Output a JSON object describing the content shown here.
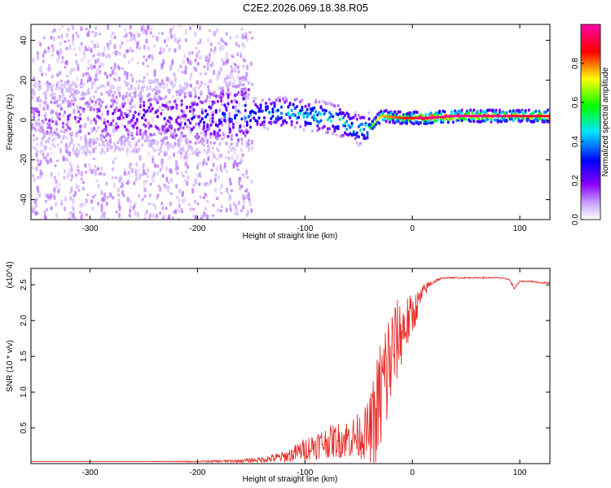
{
  "title": "C2E2.2026.069.18.38.R05",
  "chart_data": [
    {
      "type": "heatmap",
      "title": "C2E2.2026.069.18.38.R05",
      "xlabel": "Height of straight line (km)",
      "ylabel": "Frequency (Hz)",
      "xlim": [
        -355,
        128
      ],
      "ylim": [
        -50,
        48
      ],
      "xticks": [
        -300,
        -200,
        -100,
        0,
        100
      ],
      "xtick_labels": [
        "-300",
        "-200",
        "-100",
        "0",
        "100"
      ],
      "yticks": [
        -40,
        -20,
        0,
        20,
        40
      ],
      "ytick_labels": [
        "-40",
        "-20",
        "0",
        "20",
        "40"
      ],
      "colorbar": {
        "label": "Normalized spectral amplitude",
        "range": [
          0,
          1
        ],
        "ticks": [
          0,
          0.2,
          0.4,
          0.6,
          0.8
        ],
        "tick_labels": [
          "0.0",
          "0.2",
          "0.4",
          "0.6",
          "0.8"
        ],
        "colors": [
          "#ffffff",
          "#8b00ff",
          "#0000ff",
          "#00e5ff",
          "#00ff00",
          "#ffff00",
          "#ff0000",
          "#ff00aa"
        ]
      },
      "ridge": {
        "x": [
          -355,
          -300,
          -250,
          -200,
          -150,
          -120,
          -90,
          -70,
          -50,
          -40,
          -30,
          -10,
          10,
          40,
          80,
          100,
          128
        ],
        "freq": [
          2,
          1,
          2,
          1,
          3,
          4,
          2,
          0,
          -5,
          -4,
          2,
          1,
          1,
          2,
          2,
          2,
          2
        ],
        "amplitude": [
          0.15,
          0.2,
          0.25,
          0.3,
          0.45,
          0.5,
          0.55,
          0.55,
          0.5,
          0.6,
          0.75,
          0.85,
          0.95,
          0.98,
          0.95,
          0.9,
          0.9
        ]
      }
    },
    {
      "type": "line",
      "xlabel": "Height of straight line (km)",
      "ylabel": "SNR (10 * v/v)",
      "y_multiplier": "(x10^4)",
      "xlim": [
        -355,
        128
      ],
      "ylim": [
        0,
        2.73
      ],
      "xticks": [
        -300,
        -200,
        -100,
        0,
        100
      ],
      "xtick_labels": [
        "-300",
        "-200",
        "-100",
        "0",
        "100"
      ],
      "yticks": [
        0.5,
        1.0,
        1.5,
        2.0,
        2.5
      ],
      "ytick_labels": [
        "0.5",
        "1.0",
        "1.5",
        "2.0",
        "2.5"
      ],
      "series": [
        {
          "name": "SNR",
          "color": "#e8302c",
          "x": [
            -355,
            -300,
            -250,
            -200,
            -160,
            -140,
            -120,
            -110,
            -100,
            -90,
            -80,
            -70,
            -60,
            -50,
            -45,
            -40,
            -35,
            -30,
            -25,
            -20,
            -15,
            -10,
            -5,
            0,
            5,
            10,
            15,
            20,
            25,
            30,
            40,
            50,
            60,
            70,
            80,
            90,
            95,
            100,
            110,
            120,
            128
          ],
          "y": [
            0.03,
            0.03,
            0.03,
            0.03,
            0.04,
            0.06,
            0.1,
            0.15,
            0.22,
            0.28,
            0.32,
            0.35,
            0.38,
            0.42,
            0.45,
            0.5,
            0.7,
            1.0,
            1.3,
            1.55,
            1.75,
            1.9,
            2.0,
            2.1,
            2.25,
            2.4,
            2.5,
            2.55,
            2.58,
            2.6,
            2.6,
            2.6,
            2.6,
            2.6,
            2.6,
            2.58,
            2.45,
            2.55,
            2.55,
            2.53,
            2.53
          ],
          "noise": [
            0.0,
            0.0,
            0.0,
            0.01,
            0.02,
            0.04,
            0.08,
            0.12,
            0.16,
            0.2,
            0.22,
            0.25,
            0.28,
            0.32,
            0.36,
            0.45,
            0.7,
            0.9,
            0.95,
            0.8,
            0.6,
            0.5,
            0.4,
            0.3,
            0.2,
            0.12,
            0.06,
            0.03,
            0.02,
            0.01,
            0.01,
            0.01,
            0.01,
            0.01,
            0.01,
            0.01,
            0.02,
            0.01,
            0.01,
            0.01,
            0.01
          ]
        }
      ]
    }
  ]
}
